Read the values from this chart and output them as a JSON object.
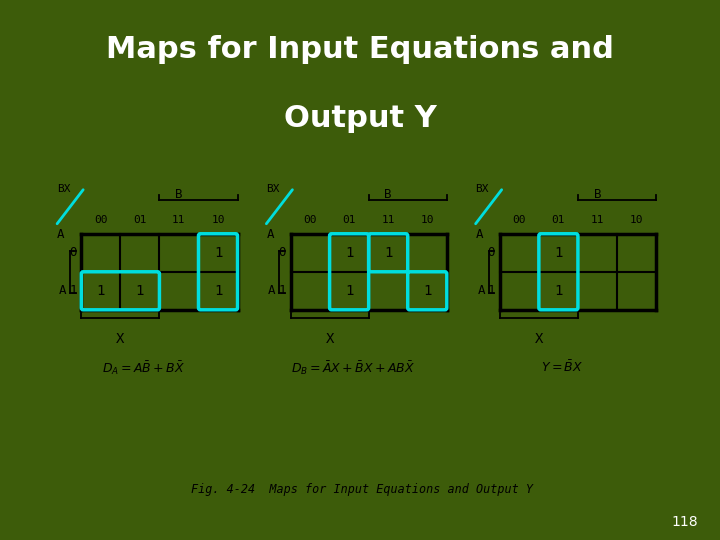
{
  "title_line1": "Maps for Input Equations and",
  "title_line2": "Output Y",
  "title_fontsize": 22,
  "bg_color": "#3d5c0a",
  "white_bg": "#ffffff",
  "cyan_color": "#00dede",
  "slide_number": "118",
  "fig_caption": "Fig. 4-24  Maps for Input Equations and Output Y",
  "col_labels": [
    "00",
    "01",
    "11",
    "10"
  ],
  "maps": [
    {
      "values": [
        [
          0,
          0,
          0,
          1
        ],
        [
          1,
          1,
          0,
          1
        ]
      ],
      "cyan_boxes": [
        {
          "row": 1,
          "col": 0,
          "rowspan": 1,
          "colspan": 2
        },
        {
          "row": 0,
          "col": 3,
          "rowspan": 2,
          "colspan": 1
        }
      ],
      "equation": "$D_A = A\\bar{B} + B\\bar{X}$"
    },
    {
      "values": [
        [
          0,
          1,
          1,
          0
        ],
        [
          0,
          1,
          0,
          1
        ]
      ],
      "cyan_boxes": [
        {
          "row": 0,
          "col": 1,
          "rowspan": 2,
          "colspan": 1
        },
        {
          "row": 0,
          "col": 2,
          "rowspan": 1,
          "colspan": 1
        },
        {
          "row": 1,
          "col": 3,
          "rowspan": 1,
          "colspan": 1
        }
      ],
      "equation": "$D_B = \\bar{A}X + \\bar{B}X + AB\\bar{X}$"
    },
    {
      "values": [
        [
          0,
          1,
          0,
          0
        ],
        [
          0,
          1,
          0,
          0
        ]
      ],
      "cyan_boxes": [
        {
          "row": 0,
          "col": 1,
          "rowspan": 2,
          "colspan": 1
        }
      ],
      "equation": "$Y = \\bar{B}X$"
    }
  ]
}
